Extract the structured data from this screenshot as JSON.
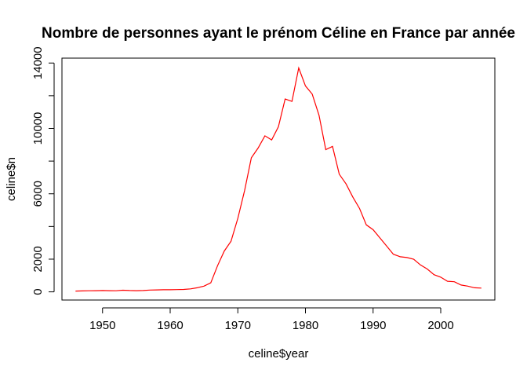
{
  "chart_data": {
    "type": "line",
    "title": "Nombre de personnes ayant le prénom Céline en France par année",
    "xlabel": "celine$year",
    "ylabel": "celine$n",
    "xlim": [
      1944,
      2008
    ],
    "ylim": [
      -500,
      14300
    ],
    "xticks": [
      1950,
      1960,
      1970,
      1980,
      1990,
      2000
    ],
    "xtick_labels": [
      "1950",
      "1960",
      "1970",
      "1980",
      "1990",
      "2000"
    ],
    "yticks": [
      0,
      2000,
      6000,
      10000,
      14000
    ],
    "ytick_labels": [
      "0",
      "2000",
      "6000",
      "10000",
      "14000"
    ],
    "ytick_marks": [
      0,
      2000,
      4000,
      6000,
      8000,
      10000,
      12000,
      14000
    ],
    "grid": false,
    "series": [
      {
        "color": "#ff0000",
        "x": [
          1946,
          1947,
          1948,
          1949,
          1950,
          1951,
          1952,
          1953,
          1954,
          1955,
          1956,
          1957,
          1958,
          1959,
          1960,
          1961,
          1962,
          1963,
          1964,
          1965,
          1966,
          1967,
          1968,
          1969,
          1970,
          1971,
          1972,
          1973,
          1974,
          1975,
          1976,
          1977,
          1978,
          1979,
          1980,
          1981,
          1982,
          1983,
          1984,
          1985,
          1986,
          1987,
          1988,
          1989,
          1990,
          1991,
          1992,
          1993,
          1994,
          1995,
          1996,
          1997,
          1998,
          1999,
          2000,
          2001,
          2002,
          2003,
          2004,
          2005,
          2006
        ],
        "y": [
          50,
          55,
          65,
          70,
          80,
          70,
          65,
          100,
          80,
          70,
          80,
          110,
          120,
          130,
          130,
          140,
          150,
          180,
          250,
          350,
          550,
          1600,
          2500,
          3100,
          4500,
          6200,
          8200,
          8800,
          9550,
          9300,
          10100,
          11800,
          11650,
          13700,
          12600,
          12100,
          10800,
          8700,
          8900,
          7200,
          6600,
          5800,
          5100,
          4100,
          3800,
          3300,
          2800,
          2300,
          2150,
          2100,
          2000,
          1650,
          1400,
          1050,
          900,
          650,
          620,
          420,
          350,
          250,
          230
        ]
      }
    ]
  }
}
